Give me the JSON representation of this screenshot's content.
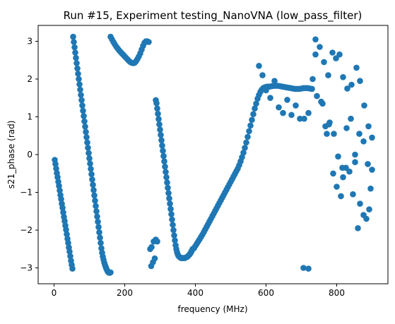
{
  "chart_data": {
    "type": "scatter",
    "title": "Run #15, Experiment testing_NanoVNA (low_pass_filter)",
    "xlabel": "frequency (MHz)",
    "ylabel": "s21_phase (rad)",
    "xlim": [
      -45,
      945
    ],
    "ylim": [
      -3.42,
      3.42
    ],
    "x_ticks": [
      0,
      200,
      400,
      600,
      800
    ],
    "y_ticks": [
      -3,
      -2,
      -1,
      0,
      1,
      2,
      3
    ],
    "x_tick_labels": [
      "0",
      "200",
      "400",
      "600",
      "800"
    ],
    "y_tick_labels": [
      "−3",
      "−2",
      "−1",
      "0",
      "1",
      "2",
      "3"
    ],
    "grid": false,
    "marker_color": "#1f77b4",
    "series": [
      {
        "x": [
          2,
          4,
          6,
          8,
          10,
          12,
          14,
          16,
          18,
          20,
          22,
          24,
          26,
          28,
          30,
          32,
          34,
          36,
          38,
          40,
          42,
          44,
          46,
          48,
          50,
          52,
          54,
          56,
          58,
          60,
          62,
          64,
          66,
          68,
          70,
          72,
          74,
          76,
          78,
          80,
          82,
          84,
          86,
          88,
          90,
          92,
          94,
          96,
          98,
          100,
          102,
          104,
          106,
          108,
          110,
          112,
          114,
          116,
          118,
          120,
          122,
          124,
          126,
          128,
          130,
          132,
          134,
          136,
          138,
          140,
          142,
          144,
          146,
          148,
          150,
          152,
          154,
          156,
          158,
          160,
          160,
          164,
          168,
          172,
          176,
          180,
          184,
          188,
          192,
          196,
          200,
          204,
          208,
          212,
          216,
          220,
          224,
          228,
          232,
          236,
          240,
          244,
          248,
          252,
          256,
          260,
          264,
          268,
          275,
          280,
          285,
          288,
          290,
          292,
          294,
          296,
          298,
          300,
          302,
          304,
          306,
          308,
          310,
          312,
          314,
          316,
          318,
          320,
          322,
          324,
          326,
          328,
          330,
          332,
          334,
          336,
          338,
          340,
          342,
          344,
          346,
          348,
          350,
          352,
          354,
          356,
          358,
          360,
          362,
          364,
          366,
          368,
          370,
          372,
          374,
          376,
          378,
          380,
          382,
          384,
          386,
          388,
          390,
          392,
          272,
          276,
          282,
          288,
          292,
          396,
          400,
          404,
          408,
          412,
          416,
          420,
          424,
          428,
          432,
          436,
          440,
          444,
          448,
          452,
          456,
          460,
          464,
          468,
          472,
          476,
          480,
          484,
          488,
          492,
          496,
          500,
          504,
          508,
          512,
          516,
          520,
          524,
          528,
          532,
          536,
          540,
          544,
          548,
          552,
          556,
          560,
          564,
          568,
          572,
          576,
          580,
          584,
          588,
          592,
          596,
          600,
          604,
          610,
          616,
          622,
          628,
          634,
          640,
          646,
          652,
          658,
          664,
          670,
          676,
          682,
          688,
          694,
          700,
          706,
          712,
          718,
          724,
          730,
          580,
          590,
          600,
          612,
          624,
          636,
          648,
          660,
          672,
          684,
          696,
          708,
          720,
          732,
          744,
          756,
          768,
          780,
          792,
          804,
          816,
          828,
          840,
          852,
          864,
          876,
          888,
          900,
          706,
          720,
          740,
          760,
          772,
          778,
          790,
          800,
          812,
          818,
          826,
          836,
          846,
          852,
          860,
          866,
          876,
          884,
          892,
          896,
          740,
          752,
          764,
          776,
          788,
          798,
          808,
          818,
          830,
          842,
          856,
          866,
          878,
          890,
          900
        ],
        "y": [
          -0.14,
          -0.25,
          -0.37,
          -0.49,
          -0.6,
          -0.72,
          -0.83,
          -0.95,
          -1.07,
          -1.18,
          -1.3,
          -1.41,
          -1.53,
          -1.65,
          -1.76,
          -1.88,
          -1.99,
          -2.11,
          -2.23,
          -2.34,
          -2.46,
          -2.57,
          -2.69,
          -2.81,
          -2.92,
          -3.02,
          3.12,
          2.98,
          2.84,
          2.7,
          2.56,
          2.42,
          2.28,
          2.14,
          2.0,
          1.86,
          1.72,
          1.58,
          1.44,
          1.3,
          1.16,
          1.02,
          0.88,
          0.74,
          0.6,
          0.46,
          0.32,
          0.18,
          0.04,
          -0.1,
          -0.24,
          -0.38,
          -0.52,
          -0.66,
          -0.8,
          -0.94,
          -1.08,
          -1.22,
          -1.36,
          -1.5,
          -1.64,
          -1.78,
          -1.92,
          -2.06,
          -2.2,
          -2.34,
          -2.48,
          -2.6,
          -2.7,
          -2.78,
          -2.86,
          -2.92,
          -2.97,
          -3.02,
          -3.06,
          -3.1,
          -3.12,
          -3.13,
          -3.13,
          -3.12,
          3.12,
          3.05,
          2.98,
          2.92,
          2.86,
          2.81,
          2.76,
          2.72,
          2.68,
          2.64,
          2.6,
          2.56,
          2.52,
          2.48,
          2.45,
          2.43,
          2.42,
          2.43,
          2.47,
          2.53,
          2.6,
          2.68,
          2.78,
          2.88,
          2.96,
          3.0,
          3.0,
          2.98,
          -2.95,
          -2.85,
          -2.75,
          1.44,
          1.36,
          1.22,
          1.08,
          0.94,
          0.8,
          0.66,
          0.52,
          0.38,
          0.24,
          0.1,
          -0.04,
          -0.18,
          -0.32,
          -0.46,
          -0.6,
          -0.74,
          -0.88,
          -1.02,
          -1.16,
          -1.3,
          -1.44,
          -1.58,
          -1.72,
          -1.86,
          -2.0,
          -2.14,
          -2.27,
          -2.4,
          -2.5,
          -2.58,
          -2.64,
          -2.68,
          -2.7,
          -2.72,
          -2.73,
          -2.74,
          -2.74,
          -2.74,
          -2.74,
          -2.74,
          -2.74,
          -2.73,
          -2.72,
          -2.71,
          -2.7,
          -2.68,
          -2.66,
          -2.64,
          -2.61,
          -2.58,
          -2.54,
          -2.5,
          -2.5,
          -2.45,
          -2.3,
          -2.25,
          -2.3,
          -2.48,
          -2.42,
          -2.36,
          -2.3,
          -2.24,
          -2.18,
          -2.12,
          -2.05,
          -1.98,
          -1.91,
          -1.84,
          -1.77,
          -1.7,
          -1.63,
          -1.56,
          -1.49,
          -1.42,
          -1.35,
          -1.28,
          -1.21,
          -1.14,
          -1.07,
          -1.0,
          -0.93,
          -0.86,
          -0.79,
          -0.72,
          -0.65,
          -0.58,
          -0.51,
          -0.44,
          -0.37,
          -0.28,
          -0.18,
          -0.07,
          0.05,
          0.18,
          0.32,
          0.47,
          0.62,
          0.77,
          0.92,
          1.07,
          1.22,
          1.35,
          1.48,
          1.58,
          1.66,
          1.72,
          1.76,
          1.78,
          1.79,
          1.8,
          1.8,
          1.81,
          1.82,
          1.82,
          1.82,
          1.81,
          1.8,
          1.79,
          1.78,
          1.77,
          1.76,
          1.75,
          1.74,
          1.74,
          1.74,
          1.75,
          1.76,
          1.76,
          1.76,
          1.75,
          1.74,
          2.35,
          2.1,
          1.7,
          1.5,
          1.95,
          1.25,
          1.1,
          1.45,
          1.05,
          1.3,
          0.95,
          0.95,
          1.1,
          2.0,
          1.55,
          1.4,
          0.75,
          0.85,
          0.55,
          -0.05,
          -0.35,
          0.7,
          0.95,
          -0.2,
          0.55,
          0.35,
          -0.25,
          0.45,
          -3.0,
          -3.02,
          3.05,
          1.35,
          0.55,
          0.8,
          -0.5,
          -0.85,
          -1.1,
          -0.6,
          -0.35,
          -0.45,
          -1.05,
          0.0,
          -1.95,
          -1.3,
          -1.6,
          -1.7,
          -1.45,
          -0.9,
          2.65,
          2.85,
          2.45,
          2.1,
          2.7,
          2.55,
          2.65,
          2.05,
          1.75,
          1.85,
          2.3,
          1.95,
          1.3,
          0.75,
          -0.4
        ]
      }
    ]
  }
}
